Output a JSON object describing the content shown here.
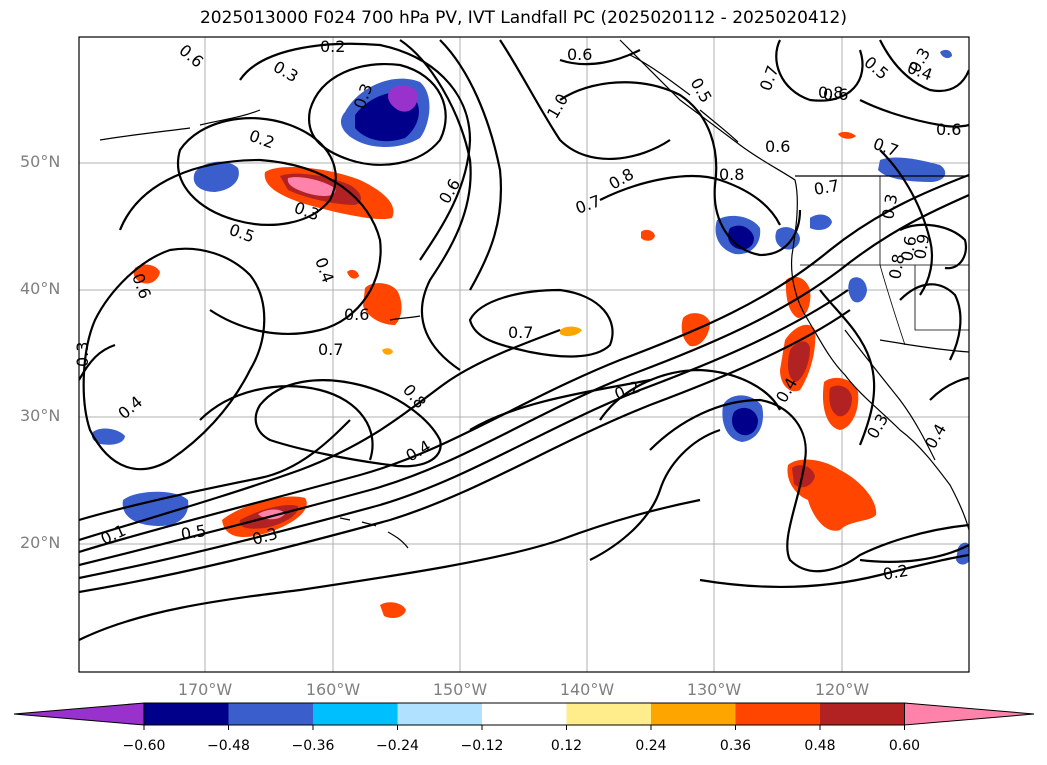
{
  "title": "2025013000 F024 700 hPa PV, IVT Landfall PC (2025020112 - 2025020412)",
  "lat_labels": [
    "50°N",
    "40°N",
    "30°N",
    "20°N"
  ],
  "lon_labels": [
    "170°W",
    "160°W",
    "150°W",
    "140°W",
    "130°W",
    "120°W"
  ],
  "contour_labels": [
    "0.6",
    "0.3",
    "0.2",
    "0.3",
    "0.6",
    "0.5",
    "0.7",
    "0.3",
    "0.4",
    "0.5",
    "0.2",
    "0.3",
    "0.5",
    "0.4",
    "0.6",
    "0.6",
    "0.6",
    "0.7",
    "0.8",
    "1.0",
    "0.7",
    "0.8",
    "0.6",
    "0.8",
    "0.7",
    "0.6",
    "0.7",
    "0.3",
    "0.4",
    "0.8",
    "0.2",
    "0.4",
    "0.3",
    "0.6",
    "0.3",
    "0.4",
    "0.1",
    "0.5",
    "0.3",
    "0.2",
    "0.8",
    "0.7",
    "0.6",
    "0.9",
    "0.4"
  ],
  "colorbar": {
    "ticks": [
      "−0.60",
      "−0.48",
      "−0.36",
      "−0.24",
      "−0.12",
      "0.12",
      "0.24",
      "0.36",
      "0.48",
      "0.60"
    ],
    "colors": [
      "#9932cc",
      "#00008b",
      "#3a5fcd",
      "#00bfff",
      "#b0e2ff",
      "#ffffff",
      "#ffec8b",
      "#ffa500",
      "#ff4500",
      "#b22222",
      "#ff82ab"
    ]
  }
}
